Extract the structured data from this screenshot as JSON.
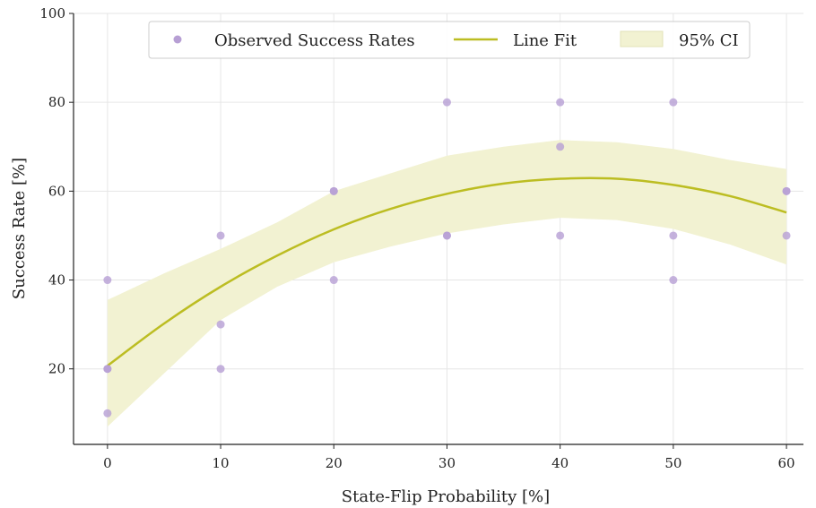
{
  "chart_data": {
    "type": "scatter",
    "xlabel": "State-Flip Probability [%]",
    "ylabel": "Success Rate [%]",
    "xlim": [
      -3,
      61.5
    ],
    "ylim": [
      3,
      100
    ],
    "x_ticks": [
      0,
      10,
      20,
      30,
      40,
      50,
      60
    ],
    "y_ticks": [
      20,
      40,
      60,
      80,
      100
    ],
    "grid": true,
    "legend_position": "top-center",
    "series": [
      {
        "name": "Observed Success Rates",
        "kind": "scatter",
        "color": "#b79fd4",
        "points": [
          {
            "x": 0,
            "y": 10
          },
          {
            "x": 0,
            "y": 20
          },
          {
            "x": 0,
            "y": 20
          },
          {
            "x": 0,
            "y": 40
          },
          {
            "x": 10,
            "y": 20
          },
          {
            "x": 10,
            "y": 30
          },
          {
            "x": 10,
            "y": 50
          },
          {
            "x": 20,
            "y": 40
          },
          {
            "x": 20,
            "y": 60
          },
          {
            "x": 20,
            "y": 60
          },
          {
            "x": 30,
            "y": 50
          },
          {
            "x": 30,
            "y": 50
          },
          {
            "x": 30,
            "y": 80
          },
          {
            "x": 40,
            "y": 50
          },
          {
            "x": 40,
            "y": 70
          },
          {
            "x": 40,
            "y": 80
          },
          {
            "x": 50,
            "y": 40
          },
          {
            "x": 50,
            "y": 50
          },
          {
            "x": 50,
            "y": 80
          },
          {
            "x": 60,
            "y": 50
          },
          {
            "x": 60,
            "y": 60
          },
          {
            "x": 60,
            "y": 60
          }
        ]
      },
      {
        "name": "Line Fit",
        "kind": "line",
        "color": "#bcbd22",
        "x": [
          0,
          5,
          10,
          15,
          20,
          25,
          30,
          35,
          40,
          45,
          50,
          55,
          60
        ],
        "y": [
          20.7,
          30.2,
          38.5,
          45.5,
          51.4,
          56.0,
          59.4,
          61.7,
          62.8,
          62.8,
          61.4,
          58.9,
          55.2
        ]
      },
      {
        "name": "95% CI",
        "kind": "band",
        "color": "#f2f2d2",
        "x": [
          0,
          5,
          10,
          15,
          20,
          25,
          30,
          35,
          40,
          45,
          50,
          55,
          60
        ],
        "lower": [
          7.0,
          19.0,
          31.0,
          38.5,
          44.0,
          47.5,
          50.5,
          52.5,
          54.0,
          53.5,
          51.5,
          48.0,
          43.5
        ],
        "upper": [
          35.5,
          41.5,
          47.0,
          53.0,
          60.0,
          64.0,
          68.0,
          70.0,
          71.5,
          71.0,
          69.5,
          67.0,
          65.0
        ]
      }
    ]
  }
}
